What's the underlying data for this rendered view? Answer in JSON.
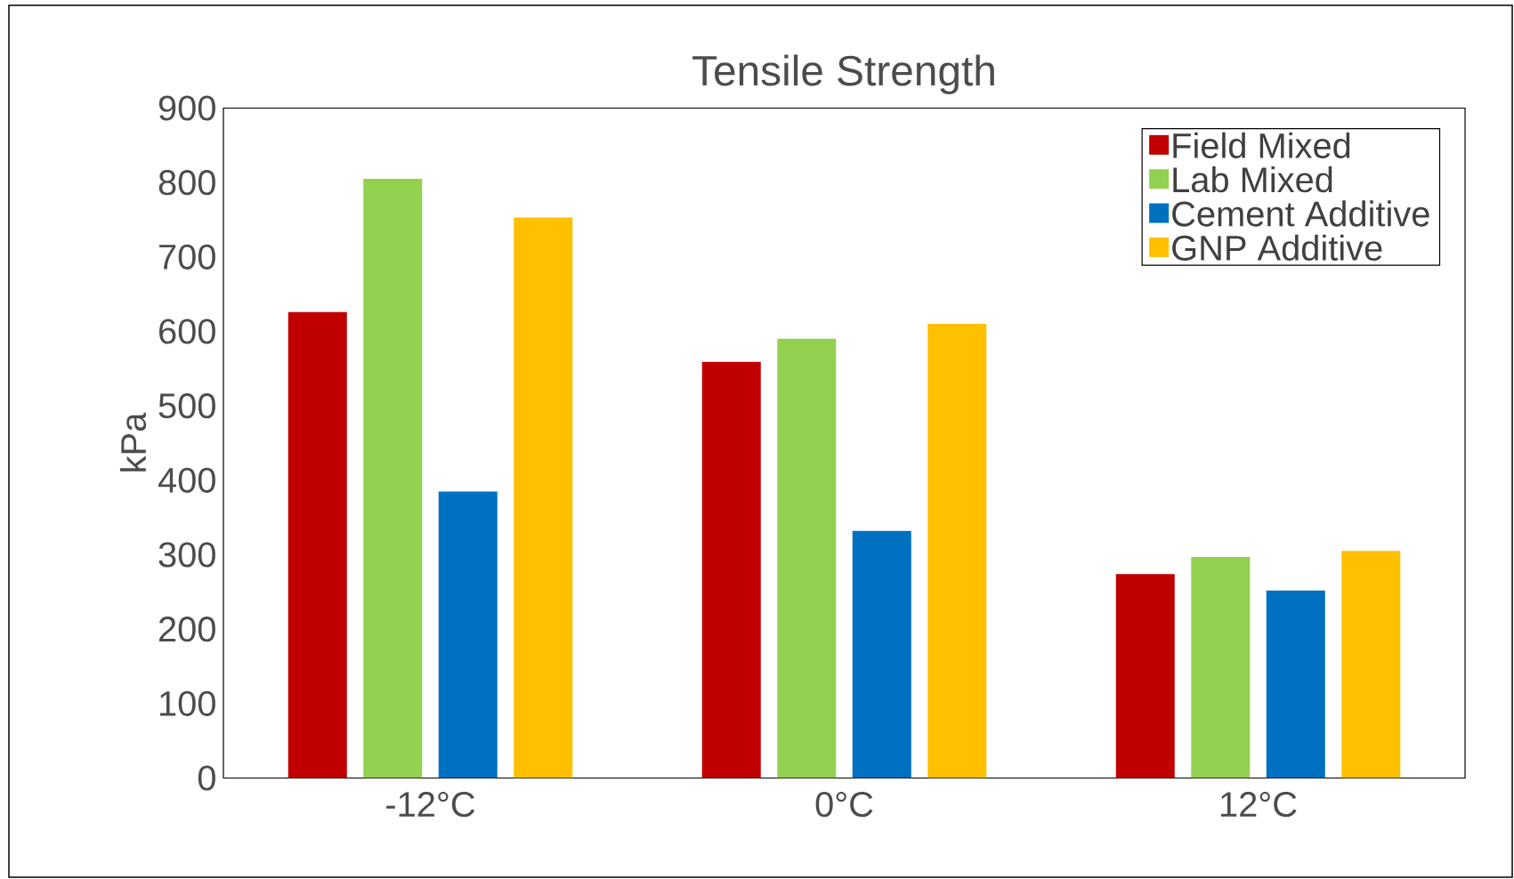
{
  "chart_data": {
    "type": "bar",
    "title": "Tensile Strength",
    "ylabel": "kPa",
    "categories": [
      "-12°C",
      "0°C",
      "12°C"
    ],
    "series": [
      {
        "name": "Field Mixed",
        "color": "#c00000",
        "values": [
          626,
          559,
          274
        ]
      },
      {
        "name": "Lab Mixed",
        "color": "#92d050",
        "values": [
          805,
          590,
          297
        ]
      },
      {
        "name": "Cement Additive",
        "color": "#0070c0",
        "values": [
          385,
          332,
          252
        ]
      },
      {
        "name": "GNP Additive",
        "color": "#ffc000",
        "values": [
          753,
          610,
          305
        ]
      }
    ],
    "ylim": [
      0,
      900
    ],
    "yticks": [
      0,
      100,
      200,
      300,
      400,
      500,
      600,
      700,
      800,
      900
    ],
    "legend": "top right",
    "grid": false
  }
}
